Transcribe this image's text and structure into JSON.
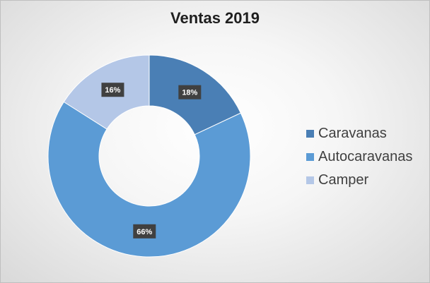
{
  "chart_data": {
    "type": "pie",
    "variant": "doughnut",
    "title": "Ventas 2019",
    "categories": [
      "Caravanas",
      "Autocaravanas",
      "Camper"
    ],
    "values": [
      18,
      66,
      16
    ],
    "data_labels": [
      "18%",
      "66%",
      "16%"
    ],
    "colors": [
      "#4a7fb5",
      "#5b9bd5",
      "#b4c7e7"
    ],
    "legend": "right"
  }
}
